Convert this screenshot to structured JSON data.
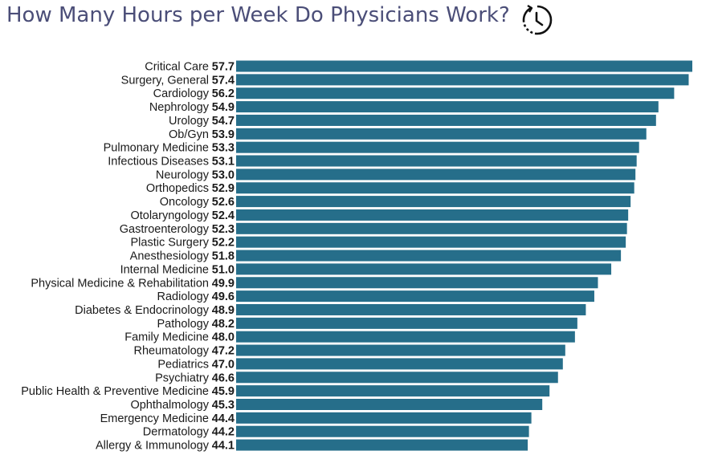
{
  "title": "How Many Hours per Week Do Physicians Work?",
  "icon": "clock-icon",
  "colors": {
    "bar": "#266e8a",
    "title": "#4b4e78",
    "text": "#1a1a1a"
  },
  "chart_data": {
    "type": "bar",
    "orientation": "horizontal",
    "title": "How Many Hours per Week Do Physicians Work?",
    "xlabel": "",
    "ylabel": "",
    "grid": false,
    "legend": "none",
    "xlim": [
      0,
      57.7
    ],
    "categories": [
      "Critical Care",
      "Surgery, General",
      "Cardiology",
      "Nephrology",
      "Urology",
      "Ob/Gyn",
      "Pulmonary Medicine",
      "Infectious Diseases",
      "Neurology",
      "Orthopedics",
      "Oncology",
      "Otolaryngology",
      "Gastroenterology",
      "Plastic Surgery",
      "Anesthesiology",
      "Internal Medicine",
      "Physical Medicine & Rehabilitation",
      "Radiology",
      "Diabetes & Endocrinology",
      "Pathology",
      "Family Medicine",
      "Rheumatology",
      "Pediatrics",
      "Psychiatry",
      "Public Health & Preventive Medicine",
      "Ophthalmology",
      "Emergency Medicine",
      "Dermatology",
      "Allergy & Immunology"
    ],
    "values": [
      57.7,
      57.4,
      56.2,
      54.9,
      54.7,
      53.9,
      53.3,
      53.1,
      53.0,
      52.9,
      52.6,
      52.4,
      52.3,
      52.2,
      51.8,
      51.0,
      49.9,
      49.6,
      48.9,
      48.2,
      48.0,
      47.2,
      47.0,
      46.6,
      45.9,
      45.3,
      44.4,
      44.2,
      44.1
    ],
    "value_labels": [
      "57.7",
      "57.4",
      "56.2",
      "54.9",
      "54.7",
      "53.9",
      "53.3",
      "53.1",
      "53.0",
      "52.9",
      "52.6",
      "52.4",
      "52.3",
      "52.2",
      "51.8",
      "51.0",
      "49.9",
      "49.6",
      "48.9",
      "48.2",
      "48.0",
      "47.2",
      "47.0",
      "46.6",
      "45.9",
      "45.3",
      "44.4",
      "44.2",
      "44.1"
    ]
  }
}
